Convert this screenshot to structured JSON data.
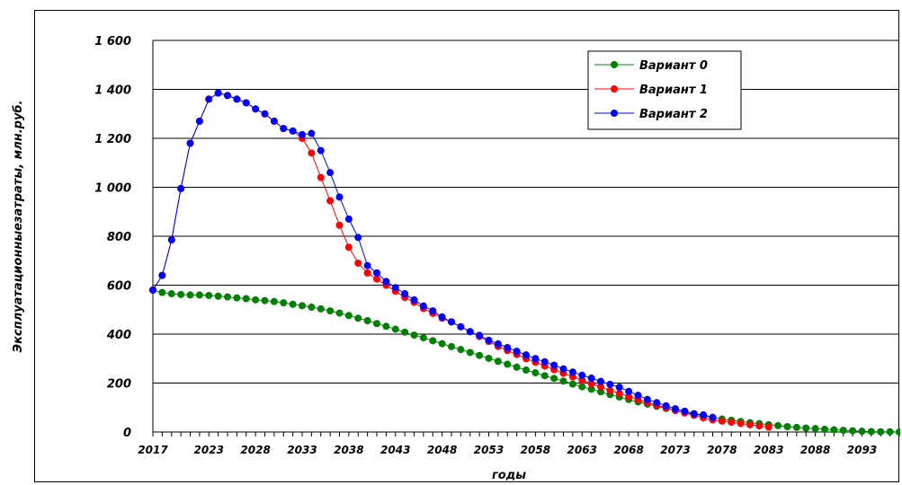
{
  "chart_data": {
    "type": "line",
    "xlabel": "годы",
    "ylabel": "Эксплуатационныезатраты, млн.руб.",
    "xlim": [
      2017,
      2097
    ],
    "ylim": [
      0,
      1600
    ],
    "grid": true,
    "legend_position": "top-right",
    "y_ticks": [
      "0",
      "200",
      "400",
      "600",
      "800",
      "1 000",
      "1 200",
      "1 400",
      "1 600"
    ],
    "y_tick_values": [
      0,
      200,
      400,
      600,
      800,
      1000,
      1200,
      1400,
      1600
    ],
    "x_ticks": [
      "2017",
      "2023",
      "2028",
      "2033",
      "2038",
      "2043",
      "2048",
      "2053",
      "2058",
      "2063",
      "2068",
      "2073",
      "2078",
      "2083",
      "2088",
      "2093"
    ],
    "x_tick_values": [
      2017,
      2023,
      2028,
      2033,
      2038,
      2043,
      2048,
      2053,
      2058,
      2063,
      2068,
      2073,
      2078,
      2083,
      2088,
      2093
    ],
    "series": [
      {
        "name": "Вариант 0",
        "color": "#008000",
        "x": [
          2017,
          2018,
          2019,
          2020,
          2021,
          2022,
          2023,
          2024,
          2025,
          2026,
          2027,
          2028,
          2029,
          2030,
          2031,
          2032,
          2033,
          2034,
          2035,
          2036,
          2037,
          2038,
          2039,
          2040,
          2041,
          2042,
          2043,
          2044,
          2045,
          2046,
          2047,
          2048,
          2049,
          2050,
          2051,
          2052,
          2053,
          2054,
          2055,
          2056,
          2057,
          2058,
          2059,
          2060,
          2061,
          2062,
          2063,
          2064,
          2065,
          2066,
          2067,
          2068,
          2069,
          2070,
          2071,
          2072,
          2073,
          2074,
          2075,
          2076,
          2077,
          2078,
          2079,
          2080,
          2081,
          2082,
          2083,
          2084,
          2085,
          2086,
          2087,
          2088,
          2089,
          2090,
          2091,
          2092,
          2093,
          2094,
          2095,
          2096,
          2097
        ],
        "y": [
          580,
          570,
          565,
          562,
          560,
          560,
          558,
          555,
          552,
          548,
          545,
          540,
          537,
          533,
          528,
          522,
          516,
          510,
          503,
          495,
          486,
          476,
          465,
          455,
          443,
          432,
          420,
          408,
          396,
          385,
          373,
          361,
          349,
          337,
          325,
          313,
          301,
          289,
          277,
          265,
          253,
          242,
          230,
          219,
          208,
          196,
          185,
          175,
          164,
          153,
          143,
          133,
          123,
          114,
          105,
          96,
          88,
          80,
          72,
          66,
          59,
          53,
          48,
          43,
          38,
          34,
          30,
          26,
          22,
          19,
          16,
          14,
          11,
          9,
          7,
          5,
          3,
          2,
          1,
          1,
          0
        ]
      },
      {
        "name": "Вариант 1",
        "color": "#ff0000",
        "x": [
          2017,
          2018,
          2019,
          2020,
          2021,
          2022,
          2023,
          2024,
          2025,
          2026,
          2027,
          2028,
          2029,
          2030,
          2031,
          2032,
          2033,
          2034,
          2035,
          2036,
          2037,
          2038,
          2039,
          2040,
          2041,
          2042,
          2043,
          2044,
          2045,
          2046,
          2047,
          2048,
          2049,
          2050,
          2051,
          2052,
          2053,
          2054,
          2055,
          2056,
          2057,
          2058,
          2059,
          2060,
          2061,
          2062,
          2063,
          2064,
          2065,
          2066,
          2067,
          2068,
          2069,
          2070,
          2071,
          2072,
          2073,
          2074,
          2075,
          2076,
          2077,
          2078,
          2079,
          2080,
          2081,
          2082,
          2083
        ],
        "y": [
          580,
          640,
          785,
          995,
          1180,
          1270,
          1360,
          1385,
          1375,
          1360,
          1345,
          1320,
          1300,
          1270,
          1240,
          1230,
          1200,
          1140,
          1040,
          945,
          845,
          755,
          690,
          650,
          625,
          600,
          575,
          550,
          530,
          505,
          485,
          465,
          450,
          430,
          410,
          390,
          370,
          350,
          333,
          317,
          300,
          285,
          270,
          255,
          240,
          226,
          212,
          198,
          185,
          170,
          158,
          145,
          133,
          120,
          110,
          99,
          88,
          78,
          68,
          58,
          50,
          45,
          40,
          35,
          30,
          25,
          20
        ]
      },
      {
        "name": "Вариант 2",
        "color": "#0000ff",
        "x": [
          2017,
          2018,
          2019,
          2020,
          2021,
          2022,
          2023,
          2024,
          2025,
          2026,
          2027,
          2028,
          2029,
          2030,
          2031,
          2032,
          2033,
          2034,
          2035,
          2036,
          2037,
          2038,
          2039,
          2040,
          2041,
          2042,
          2043,
          2044,
          2045,
          2046,
          2047,
          2048,
          2049,
          2050,
          2051,
          2052,
          2053,
          2054,
          2055,
          2056,
          2057,
          2058,
          2059,
          2060,
          2061,
          2062,
          2063,
          2064,
          2065,
          2066,
          2067,
          2068,
          2069,
          2070,
          2071,
          2072,
          2073,
          2074,
          2075,
          2076,
          2077
        ],
        "y": [
          580,
          640,
          785,
          995,
          1180,
          1270,
          1360,
          1385,
          1375,
          1360,
          1345,
          1320,
          1300,
          1270,
          1240,
          1230,
          1215,
          1220,
          1150,
          1060,
          960,
          870,
          795,
          680,
          650,
          615,
          590,
          565,
          540,
          515,
          495,
          470,
          450,
          430,
          410,
          395,
          375,
          360,
          345,
          330,
          315,
          300,
          287,
          273,
          258,
          245,
          232,
          220,
          207,
          195,
          183,
          166,
          150,
          133,
          120,
          107,
          95,
          85,
          75,
          70,
          60
        ]
      }
    ]
  }
}
